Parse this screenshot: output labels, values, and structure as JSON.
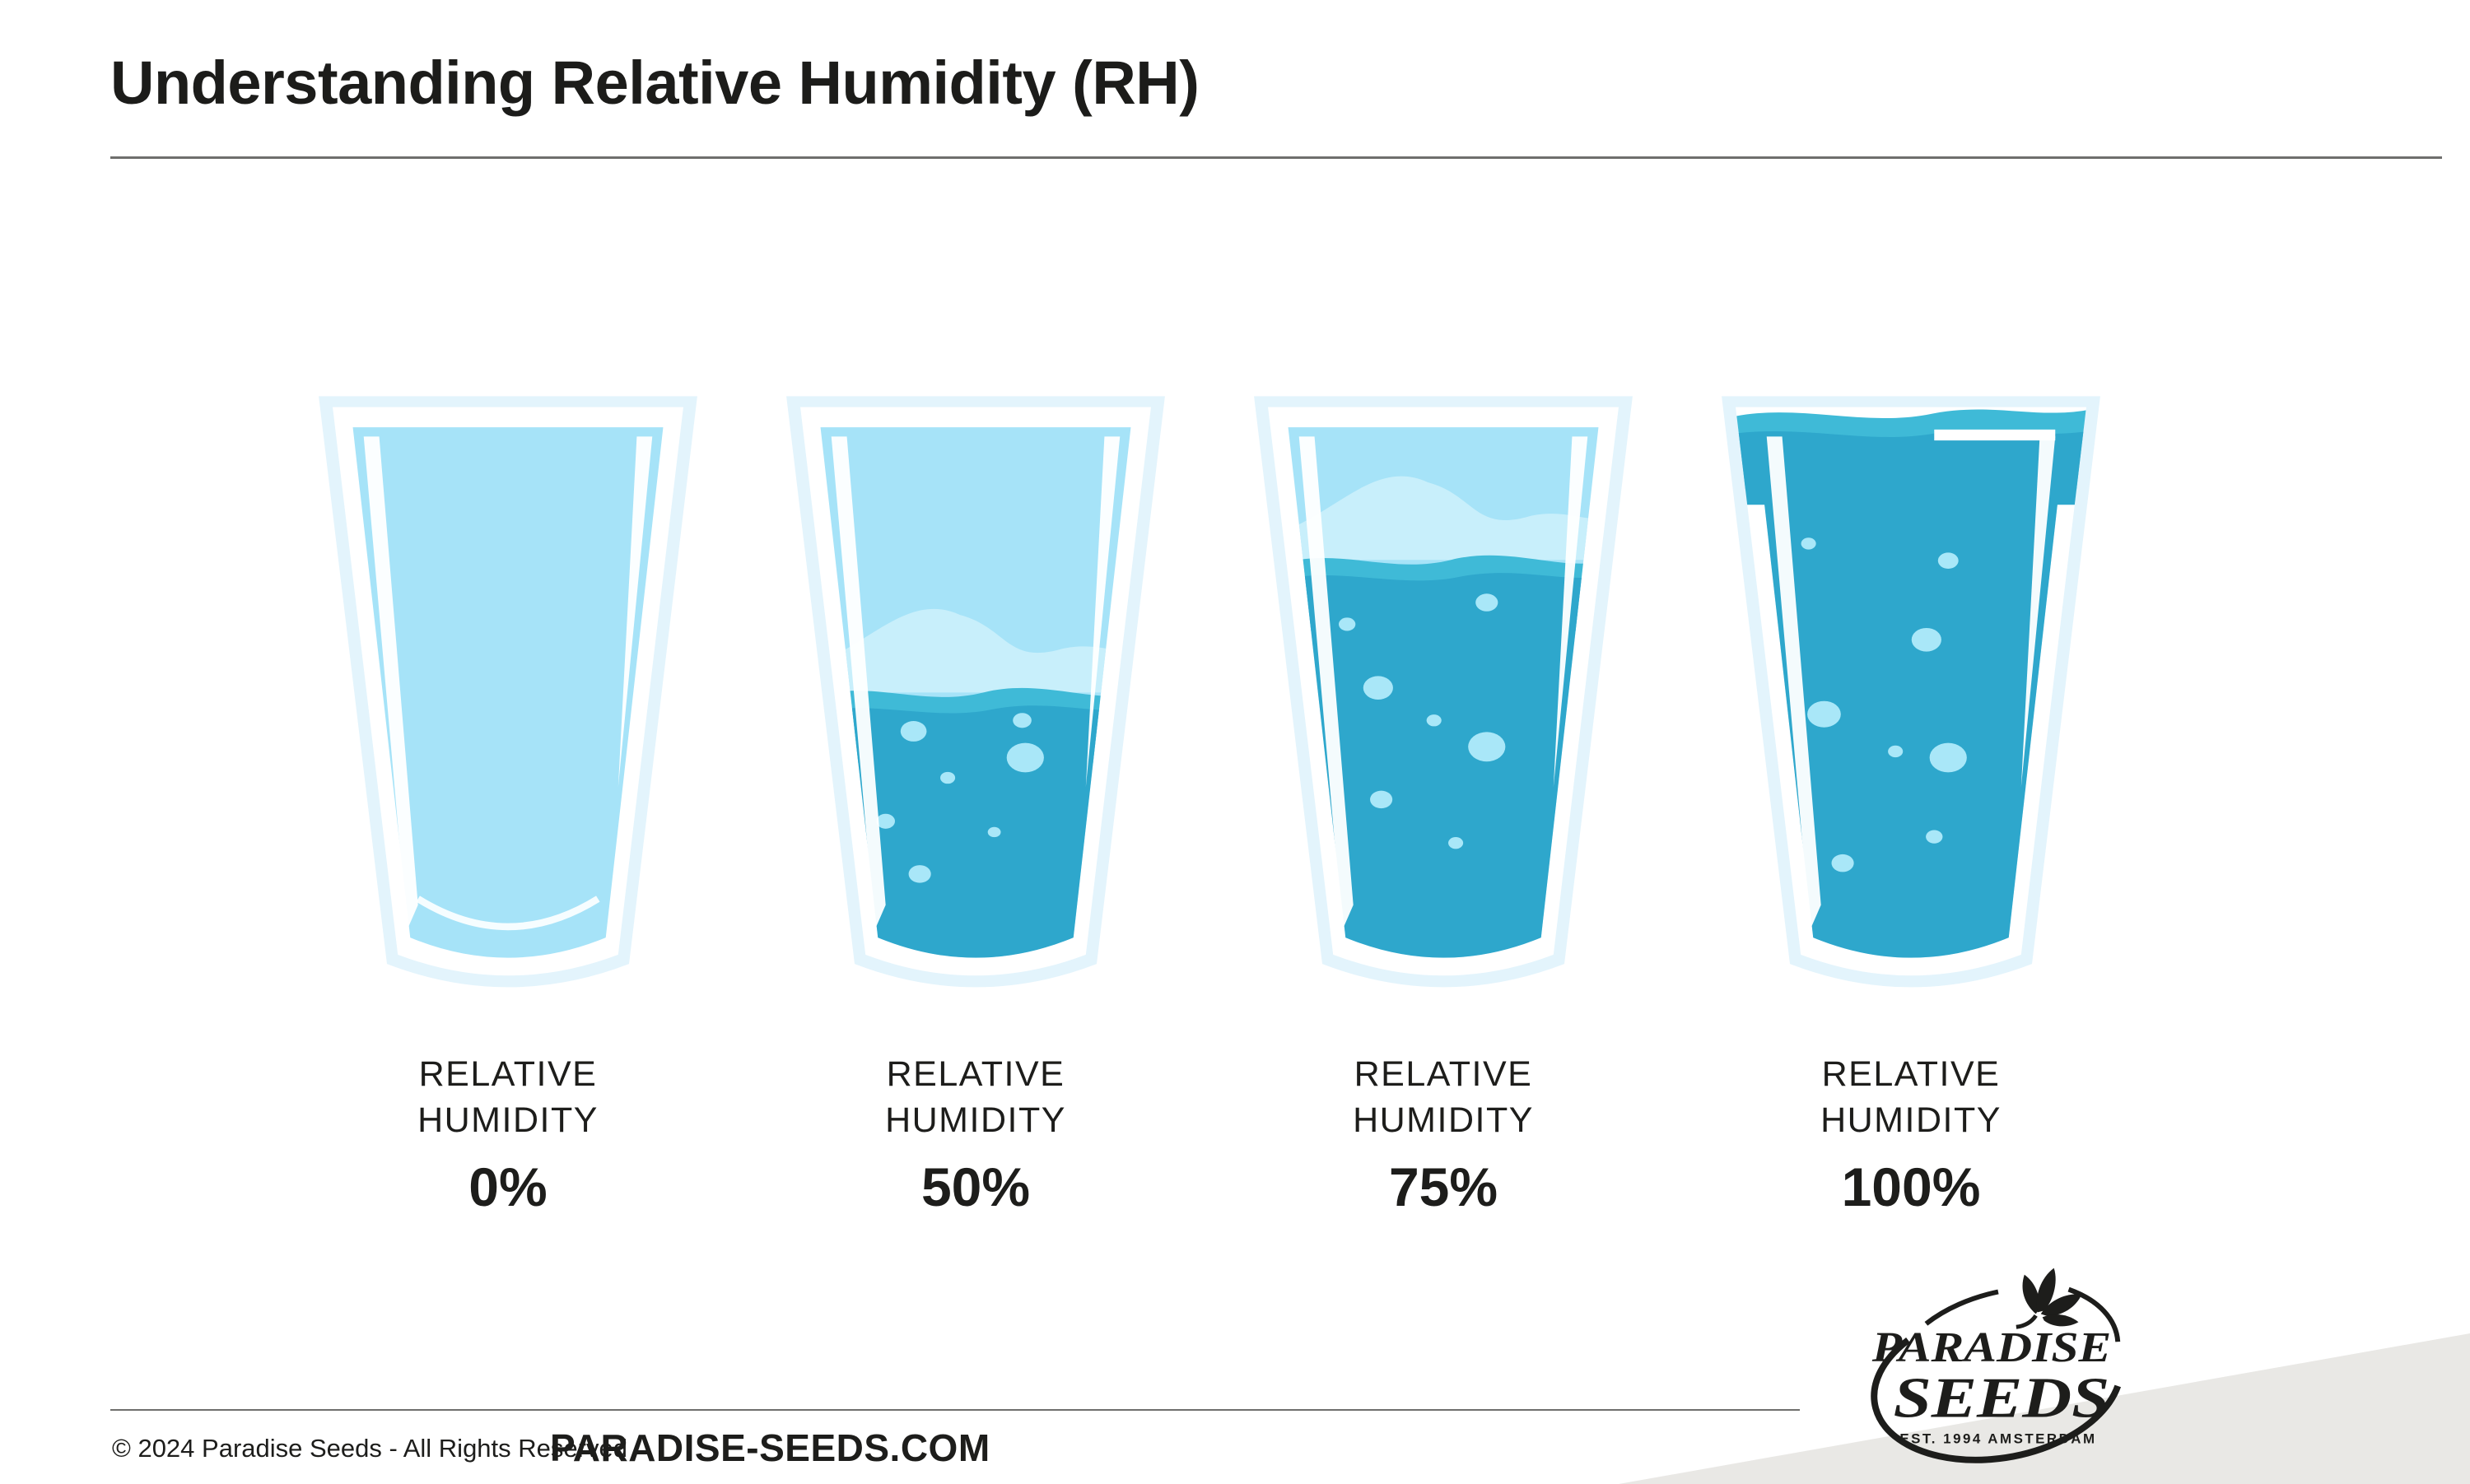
{
  "page": {
    "title": "Understanding Relative Humidity (RH)"
  },
  "glasses": [
    {
      "id": "glass-rh-0",
      "label_line1": "RELATIVE",
      "label_line2": "HUMIDITY",
      "value": "0%",
      "fill_percent": 0,
      "bubbles": []
    },
    {
      "id": "glass-rh-50",
      "label_line1": "RELATIVE",
      "label_line2": "HUMIDITY",
      "value": "50%",
      "fill_percent": 50,
      "bubbles": [
        [
          90,
          222,
          7
        ],
        [
          160,
          215,
          5
        ],
        [
          162,
          239,
          10
        ],
        [
          112,
          252,
          4
        ],
        [
          72,
          280,
          5
        ],
        [
          142,
          287,
          3.5
        ],
        [
          94,
          314,
          6
        ]
      ]
    },
    {
      "id": "glass-rh-75",
      "label_line1": "RELATIVE",
      "label_line2": "HUMIDITY",
      "value": "75%",
      "fill_percent": 75,
      "bubbles": [
        [
          68,
          153,
          4.5
        ],
        [
          158,
          139,
          6
        ],
        [
          88,
          194,
          8
        ],
        [
          124,
          215,
          4
        ],
        [
          158,
          232,
          10
        ],
        [
          90,
          266,
          6
        ],
        [
          138,
          294,
          4
        ]
      ]
    },
    {
      "id": "glass-rh-100",
      "label_line1": "RELATIVE",
      "label_line2": "HUMIDITY",
      "value": "100%",
      "fill_percent": 100,
      "bubbles": [
        [
          64,
          101,
          4
        ],
        [
          154,
          112,
          5.5
        ],
        [
          140,
          163,
          8
        ],
        [
          74,
          211,
          9
        ],
        [
          120,
          235,
          4
        ],
        [
          154,
          239,
          10
        ],
        [
          145,
          290,
          4.5
        ],
        [
          86,
          307,
          6
        ]
      ]
    }
  ],
  "chart_data": {
    "type": "bar",
    "title": "Understanding Relative Humidity (RH)",
    "categories": [
      "Relative Humidity 0%",
      "Relative Humidity 50%",
      "Relative Humidity 75%",
      "Relative Humidity 100%"
    ],
    "values": [
      0,
      50,
      75,
      100
    ],
    "unit": "%",
    "ylim": [
      0,
      100
    ],
    "representation": "water fill level inside four drinking glasses"
  },
  "logo": {
    "line1": "PARADISE",
    "line2": "SEEDS",
    "tagline": "EST. 1994 AMSTERDAM"
  },
  "footer": {
    "copyright": "© 2024 Paradise Seeds - All Rights Reserved",
    "website": "PARADISE-SEEDS.COM"
  },
  "colors": {
    "ink": "#1d1d1b",
    "rule": "#6f6f6d",
    "glass_glow": "#e3f4fc",
    "glass_white": "#ffffff",
    "glass_air": "#a6e3f8",
    "air_highlight": "#c8effb",
    "water_crest": "#3fbad7",
    "water": "#2ea7cc",
    "bubble": "#a9e7f8",
    "wedge": "#e9e8e5"
  }
}
